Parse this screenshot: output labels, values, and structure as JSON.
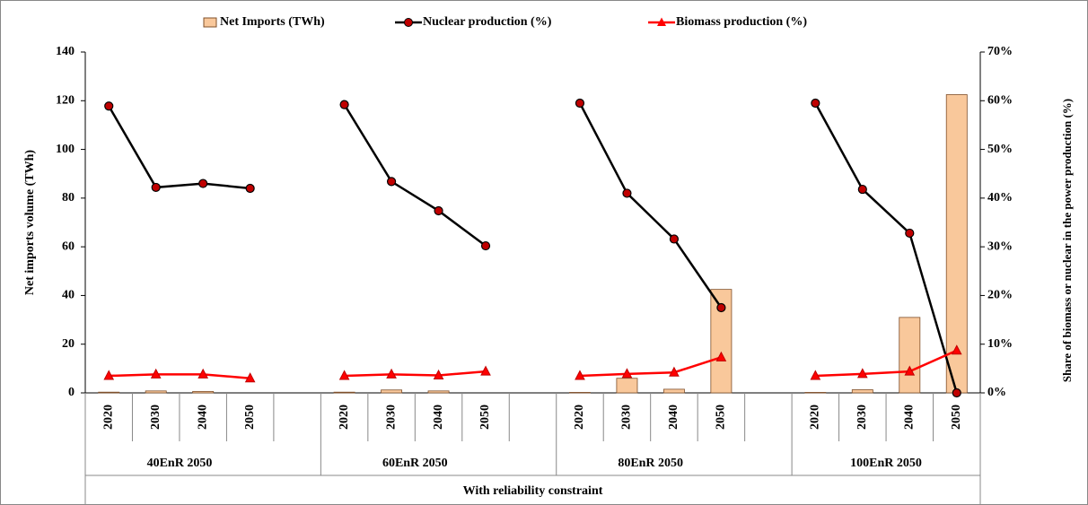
{
  "chart_data": {
    "type": "bar-line",
    "categories": [
      "2020",
      "2030",
      "2040",
      "2050",
      null,
      "2020",
      "2030",
      "2040",
      "2050",
      null,
      "2020",
      "2030",
      "2040",
      "2050",
      null,
      "2020",
      "2030",
      "2040",
      "2050"
    ],
    "groups": [
      "40EnR 2050",
      "60EnR 2050",
      "80EnR 2050",
      "100EnR 2050"
    ],
    "x_label": "With reliability constraint",
    "y_label": "Net imports volume (TWh)",
    "y2_label": "Share of biomass or nuclear in the power production (%)",
    "ylim": [
      0,
      140
    ],
    "yticks": [
      0,
      20,
      40,
      60,
      80,
      100,
      120,
      140
    ],
    "y2lim": [
      0,
      70
    ],
    "y2ticks": [
      {
        "value": 0,
        "label": "0%"
      },
      {
        "value": 10,
        "label": "10%"
      },
      {
        "value": 20,
        "label": "20%"
      },
      {
        "value": 30,
        "label": "30%"
      },
      {
        "value": 40,
        "label": "40%"
      },
      {
        "value": 50,
        "label": "50%"
      },
      {
        "value": 60,
        "label": "60%"
      },
      {
        "value": 70,
        "label": "70%"
      }
    ],
    "series": [
      {
        "name": "Net Imports (TWh)",
        "type": "bar",
        "color": "#f9c89b",
        "values": [
          0.3,
          0.8,
          0.6,
          0,
          null,
          0.3,
          1.2,
          0.8,
          0,
          null,
          0.2,
          6,
          1.5,
          42.5,
          null,
          0.2,
          1.3,
          31,
          122.5
        ]
      },
      {
        "name": "Nuclear production (%)",
        "type": "line",
        "axis": "y2",
        "color": "#000000",
        "marker": "circle",
        "marker_color": "#c00000",
        "values": [
          58.9,
          42.2,
          43.0,
          42.0,
          null,
          59.2,
          43.4,
          37.4,
          30.2,
          null,
          59.5,
          41,
          31.6,
          17.5,
          null,
          59.5,
          41.8,
          32.8,
          0
        ]
      },
      {
        "name": "Biomass production (%)",
        "type": "line",
        "axis": "y2",
        "color": "#ff0000",
        "marker": "triangle",
        "marker_color": "#ff0000",
        "values": [
          3.5,
          3.8,
          3.8,
          3.0,
          null,
          3.5,
          3.8,
          3.6,
          4.4,
          null,
          3.5,
          3.9,
          4.2,
          7.3,
          null,
          3.5,
          3.9,
          4.4,
          8.7
        ]
      }
    ]
  }
}
